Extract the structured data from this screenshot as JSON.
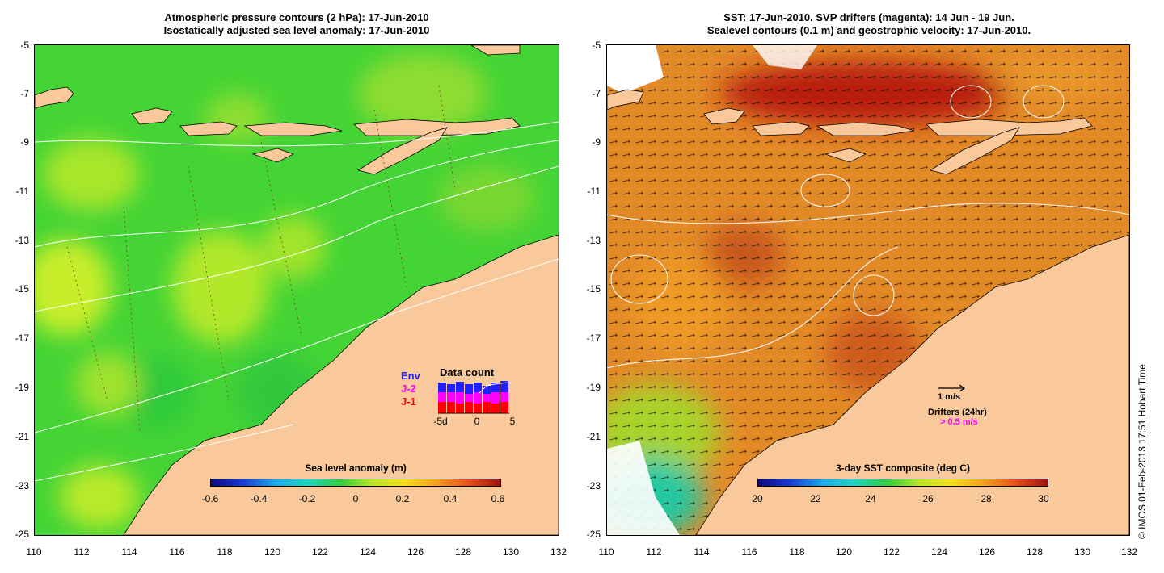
{
  "left_panel": {
    "title_line1": "Atmospheric pressure contours (2 hPa): 17-Jun-2010",
    "title_line2": "Isostatically adjusted sea level anomaly: 17-Jun-2010",
    "colorbar": {
      "label": "Sea level anomaly (m)",
      "ticks": [
        "-0.6",
        "-0.4",
        "-0.2",
        "0",
        "0.2",
        "0.4",
        "0.6"
      ],
      "range": [
        -0.6,
        0.6
      ]
    },
    "data_count": {
      "title": "Data count",
      "legend": [
        {
          "label": "Env",
          "color": "#2020ff"
        },
        {
          "label": "J-2",
          "color": "#ff00ff"
        },
        {
          "label": "J-1",
          "color": "#ff0000"
        }
      ],
      "ticks": [
        "-5d",
        "0",
        "5"
      ]
    }
  },
  "right_panel": {
    "title_line1": "SST: 17-Jun-2010. SVP drifters (magenta): 14 Jun - 19 Jun.",
    "title_line2": "Sealevel contours (0.1 m) and geostrophic velocity: 17-Jun-2010.",
    "colorbar": {
      "label": "3-day SST composite (deg C)",
      "ticks": [
        "20",
        "22",
        "24",
        "26",
        "28",
        "30"
      ],
      "range": [
        20,
        30
      ]
    },
    "velocity_key": "1 m/s",
    "drifter_key_title": "Drifters (24hr)",
    "drifter_key_value": "> 0.5 m/s"
  },
  "axes": {
    "x_ticks": [
      "110",
      "112",
      "114",
      "116",
      "118",
      "120",
      "122",
      "124",
      "126",
      "128",
      "130",
      "132"
    ],
    "y_ticks": [
      "-5",
      "-7",
      "-9",
      "-11",
      "-13",
      "-15",
      "-17",
      "-19",
      "-21",
      "-23",
      "-25"
    ],
    "lon_range": [
      110,
      132
    ],
    "lat_range": [
      -25,
      -5
    ]
  },
  "credit": "© IMOS 01-Feb-2013 17:51 Hobart Time",
  "colors": {
    "land": "#f9c99c",
    "sla_base": "#44d435",
    "sst_base": "#e38a28"
  }
}
